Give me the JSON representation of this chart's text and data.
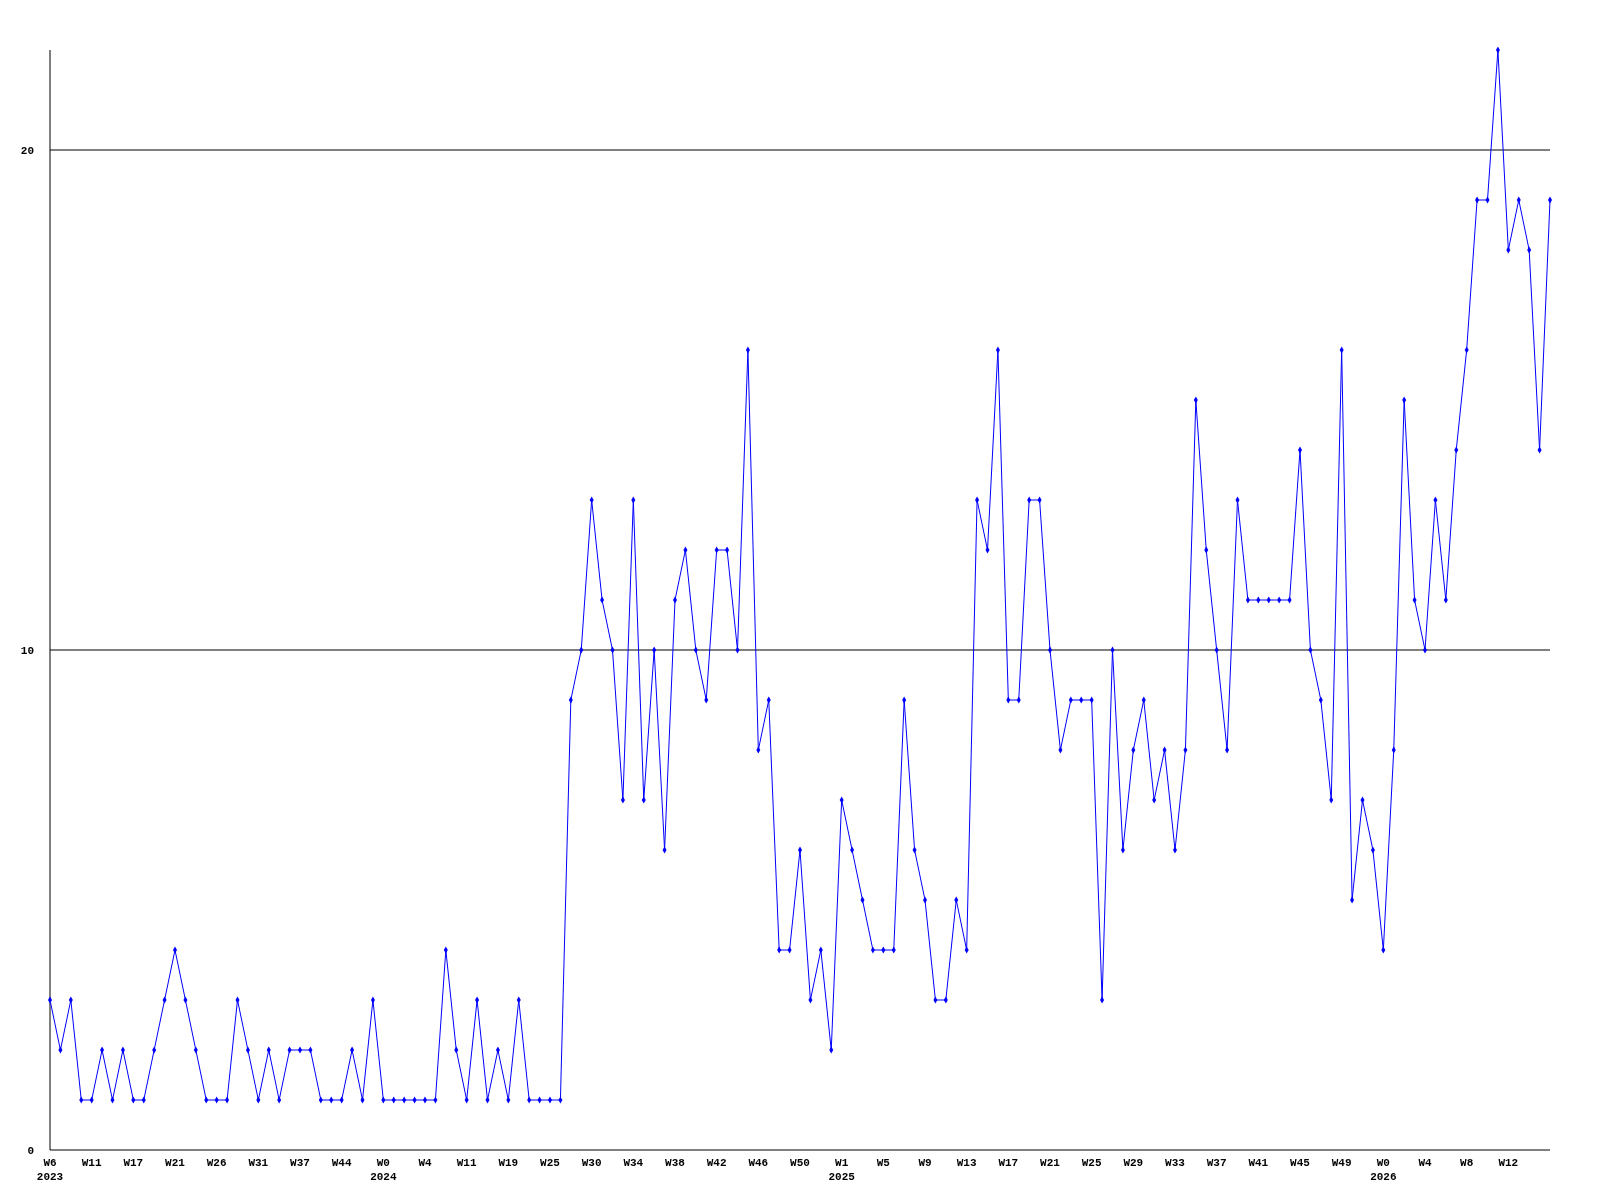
{
  "chart_data": {
    "type": "line",
    "categories": [
      "W6\n2023",
      null,
      null,
      null,
      "W11",
      null,
      null,
      null,
      "W17",
      null,
      null,
      null,
      "W21",
      null,
      null,
      null,
      "W26",
      null,
      null,
      null,
      "W31",
      null,
      null,
      null,
      "W37",
      null,
      null,
      null,
      "W44",
      null,
      null,
      null,
      "W0\n2024",
      null,
      null,
      null,
      "W4",
      null,
      null,
      null,
      "W11",
      null,
      null,
      null,
      "W19",
      null,
      null,
      null,
      "W25",
      null,
      null,
      null,
      "W30",
      null,
      null,
      null,
      "W34",
      null,
      null,
      null,
      "W38",
      null,
      null,
      null,
      "W42",
      null,
      null,
      null,
      "W46",
      null,
      null,
      null,
      "W50",
      null,
      null,
      null,
      "W1\n2025",
      null,
      null,
      null,
      "W5",
      null,
      null,
      null,
      "W9",
      null,
      null,
      null,
      "W13",
      null,
      null,
      null,
      "W17",
      null,
      null,
      null,
      "W21",
      null,
      null,
      null,
      "W25",
      null,
      null,
      null,
      "W29",
      null,
      null,
      null,
      "W33",
      null,
      null,
      null,
      "W37",
      null,
      null,
      null,
      "W41",
      null,
      null,
      null,
      "W45",
      null,
      null,
      null,
      "W49",
      null,
      null,
      null,
      "W0\n2026",
      null,
      null,
      null,
      "W4",
      null,
      null,
      null,
      "W8",
      null,
      null,
      null,
      "W12",
      null,
      null,
      null,
      null
    ],
    "series": [
      {
        "color": "#0000ff",
        "values": [
          3,
          2,
          3,
          1,
          1,
          2,
          1,
          2,
          1,
          1,
          2,
          3,
          4,
          3,
          2,
          1,
          1,
          1,
          3,
          2,
          1,
          2,
          1,
          2,
          2,
          2,
          1,
          1,
          1,
          2,
          1,
          3,
          1,
          1,
          1,
          1,
          1,
          1,
          4,
          2,
          1,
          3,
          1,
          2,
          1,
          3,
          1,
          1,
          1,
          1,
          9,
          10,
          13,
          11,
          10,
          7,
          13,
          7,
          10,
          6,
          11,
          12,
          10,
          9,
          12,
          12,
          10,
          16,
          8,
          9,
          4,
          4,
          6,
          3,
          4,
          2,
          7,
          6,
          5,
          4,
          4,
          4,
          9,
          6,
          5,
          3,
          3,
          5,
          4,
          13,
          12,
          16,
          9,
          9,
          13,
          13,
          10,
          8,
          9,
          9,
          9,
          3,
          10,
          6,
          8,
          9,
          7,
          8,
          6,
          8,
          15,
          12,
          10,
          8,
          13,
          11,
          11,
          11,
          11,
          11,
          14,
          10,
          9,
          7,
          16,
          5,
          7,
          6,
          4,
          8,
          15,
          11,
          10,
          13,
          11,
          14,
          16,
          19,
          19,
          22,
          18,
          19,
          18,
          14,
          19
        ]
      }
    ],
    "ylim": [
      0,
      22
    ],
    "yticks": [
      0,
      10,
      20
    ],
    "grid": "y",
    "marker": "diamond",
    "line_style": "solid"
  }
}
